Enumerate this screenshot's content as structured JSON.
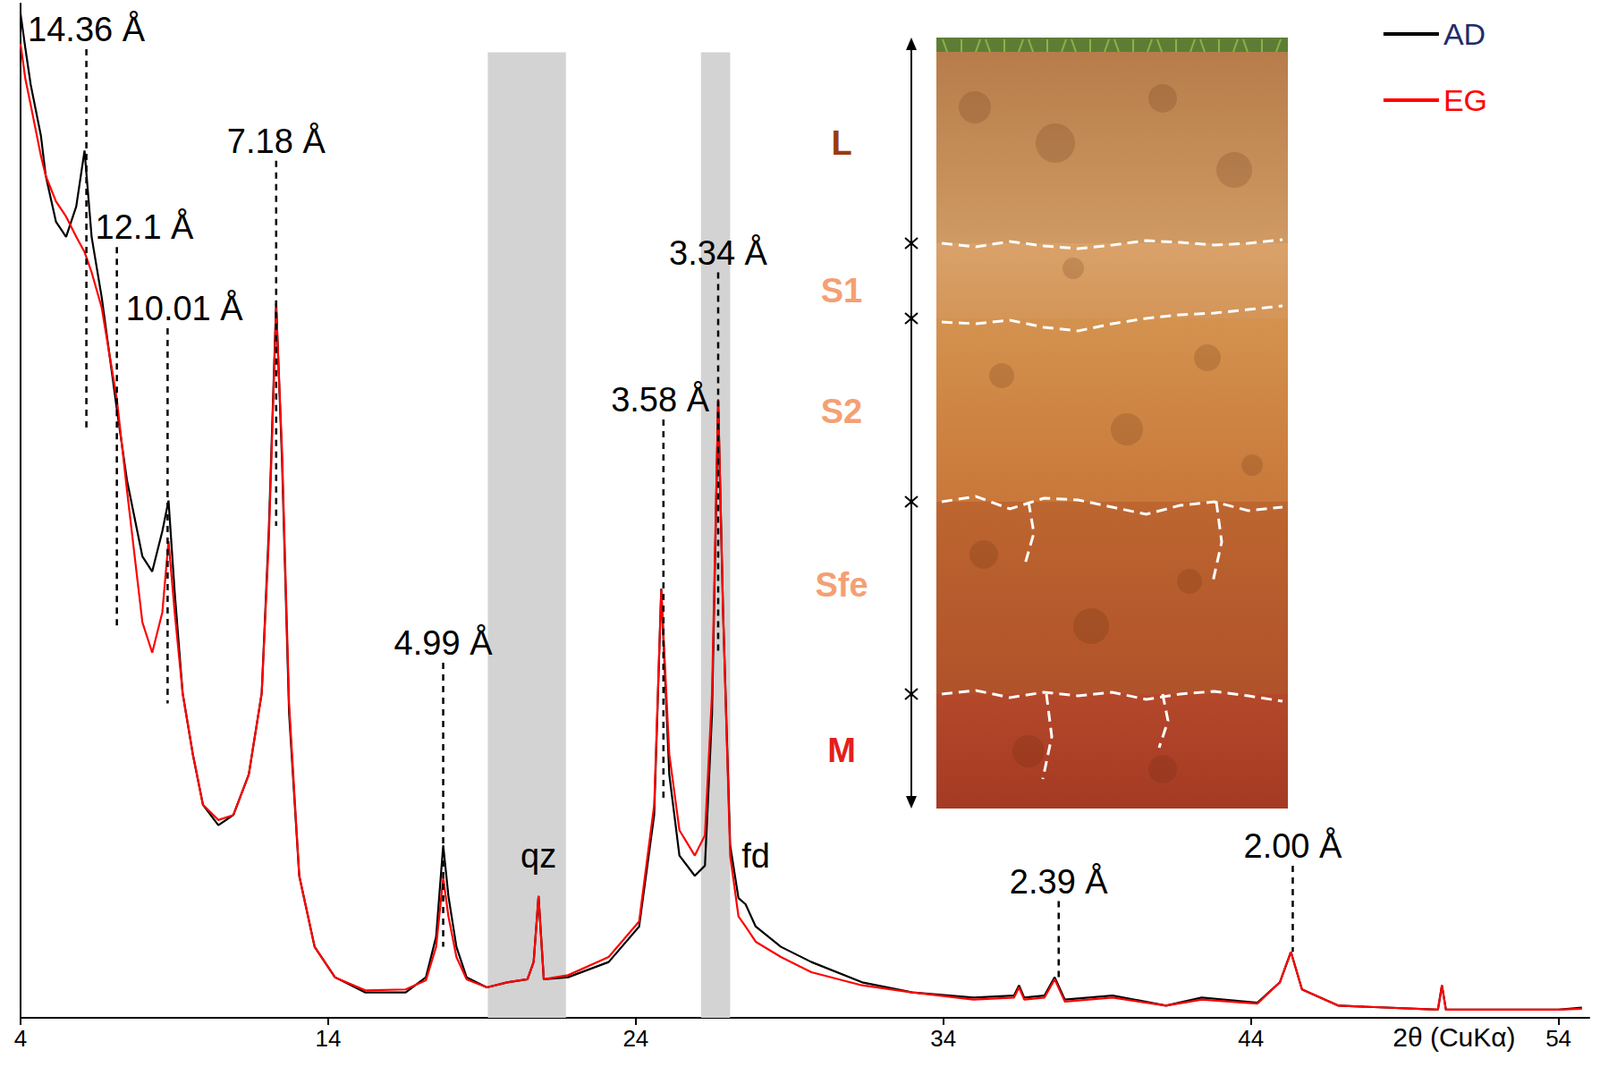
{
  "chart_data": {
    "type": "line",
    "xlabel": "2θ (CuKα)",
    "xlim": [
      4,
      55
    ],
    "xticks": [
      4,
      14,
      24,
      34,
      44,
      54
    ],
    "ylim": [
      0,
      100
    ],
    "yticks": [],
    "tick_labels": "x",
    "grid": false,
    "legend": "top right",
    "x": [
      4.0,
      4.16,
      4.33,
      4.66,
      4.82,
      5.15,
      5.48,
      5.81,
      6.08,
      6.31,
      6.64,
      7.13,
      7.46,
      7.96,
      8.28,
      8.61,
      8.81,
      9.01,
      9.27,
      9.6,
      9.93,
      10.43,
      10.92,
      11.42,
      11.84,
      12.07,
      12.31,
      12.5,
      12.73,
      13.06,
      13.56,
      14.22,
      15.21,
      16.52,
      17.18,
      17.51,
      17.74,
      17.91,
      18.17,
      18.5,
      19.16,
      19.82,
      20.48,
      20.68,
      20.84,
      21.01,
      21.8,
      23.12,
      24.11,
      24.6,
      24.83,
      25.09,
      25.42,
      25.92,
      26.25,
      26.48,
      26.68,
      26.84,
      27.07,
      27.34,
      27.57,
      27.9,
      28.72,
      29.71,
      31.36,
      33.0,
      34.98,
      36.3,
      36.46,
      36.63,
      37.29,
      37.62,
      37.95,
      39.5,
      41.24,
      42.4,
      44.21,
      44.94,
      45.3,
      45.66,
      46.85,
      50.08,
      50.21,
      50.34,
      54.0,
      54.76
    ],
    "series": [
      {
        "name": "AD",
        "color": "#000000",
        "values": [
          99,
          95.5,
          92,
          87,
          83,
          78.5,
          77,
          80,
          85.5,
          77,
          71,
          60,
          53,
          45.5,
          44,
          48,
          51,
          42,
          32,
          26,
          21,
          19,
          20,
          24,
          32,
          48,
          70.5,
          55,
          30,
          14,
          7,
          4,
          2.5,
          2.5,
          4,
          8,
          17,
          12,
          7,
          4,
          3,
          3.5,
          3.8,
          5.5,
          12,
          3.8,
          4,
          5.5,
          9,
          20,
          42.3,
          24,
          16,
          14,
          15,
          30,
          60.8,
          40,
          17,
          11.8,
          11.2,
          9,
          7,
          5.5,
          3.5,
          2.5,
          2,
          2.2,
          3.2,
          2,
          2.2,
          4,
          1.8,
          2.2,
          1.2,
          2,
          1.5,
          3.5,
          6.5,
          2.8,
          1.2,
          0.8,
          3.2,
          0.8,
          0.8,
          1
        ]
      },
      {
        "name": "EG",
        "color": "#ff0000",
        "values": [
          96,
          92.5,
          90,
          85,
          83,
          80.5,
          79,
          77,
          75.5,
          73.5,
          70,
          61,
          52,
          39,
          36,
          40,
          47,
          40,
          32,
          26,
          21,
          19.5,
          20,
          24,
          32,
          47,
          70,
          56,
          31,
          14,
          7,
          4,
          2.7,
          2.8,
          3.7,
          7,
          13.8,
          10,
          6,
          3.8,
          3,
          3.5,
          3.8,
          5.5,
          12,
          3.8,
          4.2,
          6,
          9.5,
          21,
          42.2,
          26,
          18.5,
          16,
          18,
          32,
          61,
          40,
          16,
          10,
          9,
          7.5,
          6,
          4.5,
          3.2,
          2.5,
          1.8,
          2,
          3,
          1.8,
          2,
          3.8,
          1.6,
          2,
          1.2,
          1.8,
          1.4,
          3.5,
          6.5,
          2.8,
          1.2,
          0.8,
          3.2,
          0.8,
          0.8,
          0.9
        ]
      }
    ],
    "bands": [
      {
        "from": 19.19,
        "to": 21.73,
        "top": 95.2
      },
      {
        "from": 26.12,
        "to": 27.07,
        "top": 95.2
      }
    ],
    "annotations": [
      {
        "label": "14.36 Å",
        "x": 6.14,
        "y": 95.5,
        "y_bottom": 58
      },
      {
        "label": "12.1 Å",
        "x": 7.13,
        "y": 76,
        "y_bottom": 38.5
      },
      {
        "label": "10.01 Å",
        "x": 8.78,
        "y": 68,
        "y_bottom": 31
      },
      {
        "label": "7.18 Å",
        "x": 12.31,
        "y": 84.5,
        "y_bottom": 48.5
      },
      {
        "label": "4.99 Å",
        "x": 17.74,
        "y": 35,
        "y_bottom": 7
      },
      {
        "label": "3.58 Å",
        "x": 24.9,
        "y": 59,
        "y_bottom": 21.5
      },
      {
        "label": "3.34 Å",
        "x": 26.68,
        "y": 73.5,
        "y_bottom": 36
      },
      {
        "label": "2.39 Å",
        "x": 37.75,
        "y": 11.5,
        "y_bottom": 3.5
      },
      {
        "label": "2.00 Å",
        "x": 45.36,
        "y": 15,
        "y_bottom": 6.5
      },
      {
        "label": "qz",
        "x": 20.84,
        "y": 14
      },
      {
        "label": "fd",
        "x": 27.9,
        "y": 14
      }
    ]
  },
  "inset": {
    "horizons": [
      {
        "label": "L",
        "color": "#9a3b0c"
      },
      {
        "label": "S1",
        "color": "#f4a073"
      },
      {
        "label": "S2",
        "color": "#f4a073"
      },
      {
        "label": "Sfe",
        "color": "#f4a073"
      },
      {
        "label": "M",
        "color": "#e3201b"
      }
    ]
  }
}
